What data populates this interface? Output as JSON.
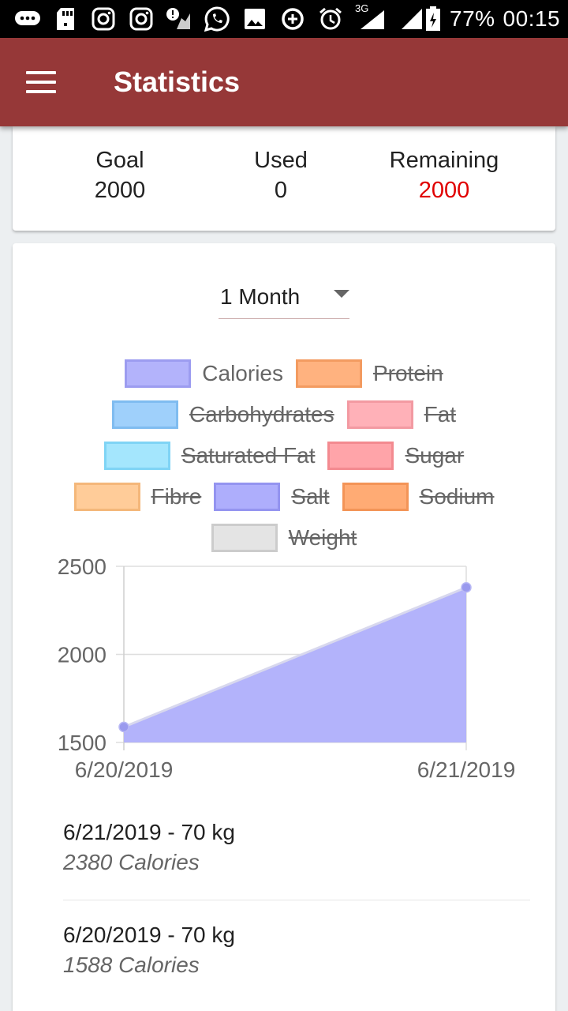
{
  "status_bar": {
    "icons": [
      "message-icon",
      "sd-card-icon",
      "instagram-icon",
      "instagram-icon-2",
      "alert-game-icon",
      "whatsapp-icon",
      "image-icon",
      "data-saver-icon",
      "alarm-icon",
      "signal-3g-icon",
      "signal-icon",
      "battery-icon"
    ],
    "network": "3G",
    "battery": "77%",
    "time": "00:15"
  },
  "app_bar": {
    "title": "Statistics",
    "menu_icon": "hamburger-menu-icon",
    "color": "#963838"
  },
  "summary": {
    "goal_label": "Goal",
    "goal_value": "2000",
    "used_label": "Used",
    "used_value": "0",
    "remaining_label": "Remaining",
    "remaining_value": "2000",
    "remaining_color": "#e00000"
  },
  "period": {
    "selected": "1 Month"
  },
  "legend": [
    {
      "label": "Calories",
      "fill": "#b3b3fb",
      "border": "#9c9cf0",
      "enabled": true
    },
    {
      "label": "Protein",
      "fill": "#ffb27f",
      "border": "#f39b60",
      "enabled": false
    },
    {
      "label": "Carbohydrates",
      "fill": "#9fd0fb",
      "border": "#7fbcf0",
      "enabled": false
    },
    {
      "label": "Fat",
      "fill": "#ffb1b8",
      "border": "#f39aa2",
      "enabled": false
    },
    {
      "label": "Saturated Fat",
      "fill": "#a4e6fd",
      "border": "#7fd4f5",
      "enabled": false
    },
    {
      "label": "Sugar",
      "fill": "#ffa4a9",
      "border": "#f38a90",
      "enabled": false
    },
    {
      "label": "Fibre",
      "fill": "#ffcc99",
      "border": "#f4b77a",
      "enabled": false
    },
    {
      "label": "Salt",
      "fill": "#aeaefc",
      "border": "#9494f0",
      "enabled": false
    },
    {
      "label": "Sodium",
      "fill": "#ffab74",
      "border": "#f39457",
      "enabled": false
    },
    {
      "label": "Weight",
      "fill": "#e4e4e4",
      "border": "#cccccc",
      "enabled": false
    }
  ],
  "chart_data": {
    "type": "area",
    "x": [
      "6/20/2019",
      "6/21/2019"
    ],
    "series": [
      {
        "name": "Calories",
        "values": [
          1588,
          2380
        ],
        "fill": "#b3b3fb",
        "stroke": "#d8d8ee"
      }
    ],
    "ylim": [
      1500,
      2500
    ],
    "yticks": [
      1500,
      2000,
      2500
    ],
    "grid": true
  },
  "entries": [
    {
      "title": "6/21/2019 - 70 kg",
      "sub": "2380 Calories"
    },
    {
      "title": "6/20/2019 - 70 kg",
      "sub": "1588 Calories"
    }
  ]
}
